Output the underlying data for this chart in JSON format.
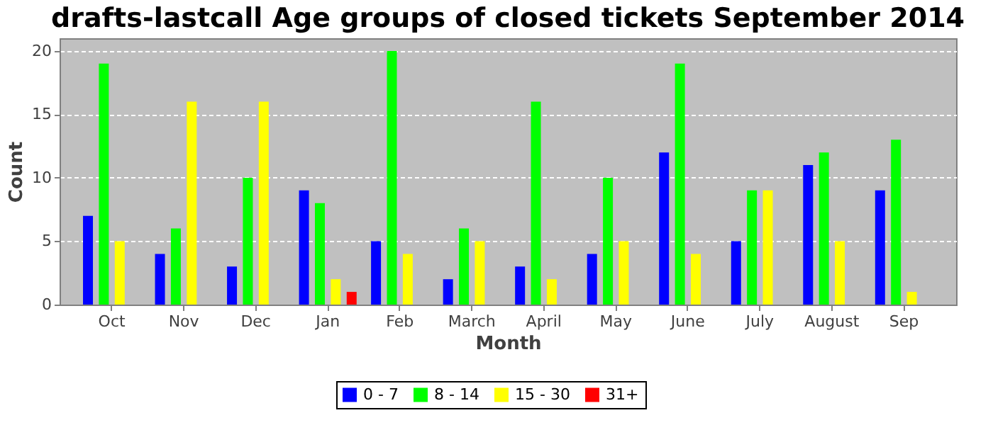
{
  "chart_data": {
    "type": "bar",
    "title": "drafts-lastcall Age groups of closed tickets September 2014",
    "xlabel": "Month",
    "ylabel": "Count",
    "categories": [
      "Oct",
      "Nov",
      "Dec",
      "Jan",
      "Feb",
      "March",
      "April",
      "May",
      "June",
      "July",
      "August",
      "Sep"
    ],
    "series": [
      {
        "name": "0 - 7",
        "color": "#0000ff",
        "values": [
          7,
          4,
          3,
          9,
          5,
          2,
          3,
          4,
          12,
          5,
          11,
          9
        ]
      },
      {
        "name": "8 - 14",
        "color": "#00ff00",
        "values": [
          19,
          6,
          10,
          8,
          20,
          6,
          16,
          10,
          19,
          9,
          12,
          13
        ]
      },
      {
        "name": "15 - 30",
        "color": "#ffff00",
        "values": [
          5,
          16,
          16,
          2,
          4,
          5,
          2,
          5,
          4,
          9,
          5,
          1
        ]
      },
      {
        "name": "31+",
        "color": "#ff0000",
        "values": [
          0,
          0,
          0,
          1,
          0,
          0,
          0,
          0,
          0,
          0,
          0,
          0
        ]
      }
    ],
    "ylim": [
      0,
      21
    ],
    "yticks": [
      0,
      5,
      10,
      15,
      20
    ],
    "grid": "y",
    "legend": "bottom"
  }
}
